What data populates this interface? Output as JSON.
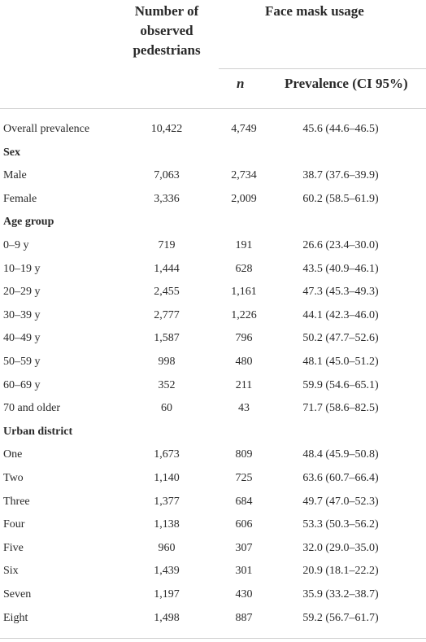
{
  "header": {
    "observed_label": "Number of observed pedestrians",
    "observed_lines": [
      "Number of",
      "observed",
      "pedestrians"
    ],
    "face_mask_label": "Face mask usage",
    "n_label": "n",
    "prevalence_label": "Prevalence (CI 95%)"
  },
  "rows": [
    {
      "type": "data",
      "label": "Overall prevalence",
      "observed": "10,422",
      "n": "4,749",
      "prevalence": "45.6 (44.6–46.5)"
    },
    {
      "type": "section",
      "label": "Sex"
    },
    {
      "type": "data",
      "label": "Male",
      "observed": "7,063",
      "n": "2,734",
      "prevalence": "38.7 (37.6–39.9)"
    },
    {
      "type": "data",
      "label": "Female",
      "observed": "3,336",
      "n": "2,009",
      "prevalence": "60.2 (58.5–61.9)"
    },
    {
      "type": "section",
      "label": "Age group"
    },
    {
      "type": "data",
      "label": "0–9 y",
      "observed": "719",
      "n": "191",
      "prevalence": "26.6 (23.4–30.0)"
    },
    {
      "type": "data",
      "label": "10–19 y",
      "observed": "1,444",
      "n": "628",
      "prevalence": "43.5 (40.9–46.1)"
    },
    {
      "type": "data",
      "label": "20–29 y",
      "observed": "2,455",
      "n": "1,161",
      "prevalence": "47.3 (45.3–49.3)"
    },
    {
      "type": "data",
      "label": "30–39 y",
      "observed": "2,777",
      "n": "1,226",
      "prevalence": "44.1 (42.3–46.0)"
    },
    {
      "type": "data",
      "label": "40–49 y",
      "observed": "1,587",
      "n": "796",
      "prevalence": "50.2 (47.7–52.6)"
    },
    {
      "type": "data",
      "label": "50–59 y",
      "observed": "998",
      "n": "480",
      "prevalence": "48.1 (45.0–51.2)"
    },
    {
      "type": "data",
      "label": "60–69 y",
      "observed": "352",
      "n": "211",
      "prevalence": "59.9 (54.6–65.1)"
    },
    {
      "type": "data",
      "label": "70 and older",
      "observed": "60",
      "n": "43",
      "prevalence": "71.7 (58.6–82.5)"
    },
    {
      "type": "section",
      "label": "Urban district"
    },
    {
      "type": "data",
      "label": "One",
      "observed": "1,673",
      "n": "809",
      "prevalence": "48.4 (45.9–50.8)"
    },
    {
      "type": "data",
      "label": "Two",
      "observed": "1,140",
      "n": "725",
      "prevalence": "63.6 (60.7–66.4)"
    },
    {
      "type": "data",
      "label": "Three",
      "observed": "1,377",
      "n": "684",
      "prevalence": "49.7 (47.0–52.3)"
    },
    {
      "type": "data",
      "label": "Four",
      "observed": "1,138",
      "n": "606",
      "prevalence": "53.3 (50.3–56.2)"
    },
    {
      "type": "data",
      "label": "Five",
      "observed": "960",
      "n": "307",
      "prevalence": "32.0 (29.0–35.0)"
    },
    {
      "type": "data",
      "label": "Six",
      "observed": "1,439",
      "n": "301",
      "prevalence": "20.9 (18.1–22.2)"
    },
    {
      "type": "data",
      "label": "Seven",
      "observed": "1,197",
      "n": "430",
      "prevalence": "35.9 (33.2–38.7)"
    },
    {
      "type": "data",
      "label": "Eight",
      "observed": "1,498",
      "n": "887",
      "prevalence": "59.2 (56.7–61.7)"
    }
  ]
}
